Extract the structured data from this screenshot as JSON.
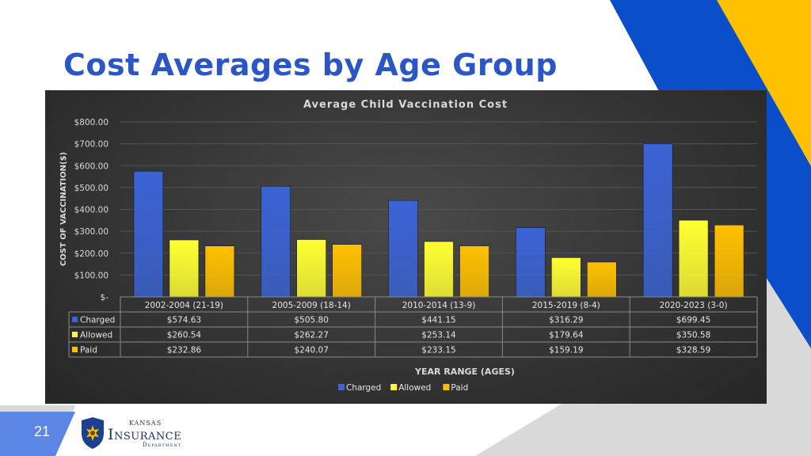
{
  "slide": {
    "title": "Cost Averages by Age Group",
    "number": "21"
  },
  "logo": {
    "line1": "Kansas",
    "line2": "Insurance",
    "line3": "Department"
  },
  "colors": {
    "title": "#2b56c6",
    "charged": "#3a63d4",
    "allowed": "#ffff33",
    "paid": "#ffc000",
    "accent_yellow": "#ffc000",
    "accent_blue": "#0a4fc9",
    "accent_gray": "#d9d9d9",
    "slide_number_bg": "#5b86e5"
  },
  "chart_data": {
    "type": "bar",
    "title": "Average Child Vaccination Cost",
    "xlabel": "YEAR RANGE (AGES)",
    "ylabel": "COST OF VACCINATION($)",
    "ylim": [
      0,
      800
    ],
    "yticks": [
      "$-",
      "$100.00",
      "$200.00",
      "$300.00",
      "$400.00",
      "$500.00",
      "$600.00",
      "$700.00",
      "$800.00"
    ],
    "grid": true,
    "legend_position": "bottom",
    "categories": [
      "2002-2004 (21-19)",
      "2005-2009 (18-14)",
      "2010-2014 (13-9)",
      "2015-2019 (8-4)",
      "2020-2023 (3-0)"
    ],
    "series": [
      {
        "name": "Charged",
        "values": [
          574.63,
          505.8,
          441.15,
          316.29,
          699.45
        ],
        "labels": [
          "$574.63",
          "$505.80",
          "$441.15",
          "$316.29",
          "$699.45"
        ],
        "color": "#3a63d4"
      },
      {
        "name": "Allowed",
        "values": [
          260.54,
          262.27,
          253.14,
          179.64,
          350.58
        ],
        "labels": [
          "$260.54",
          "$262.27",
          "$253.14",
          "$179.64",
          "$350.58"
        ],
        "color": "#ffff33"
      },
      {
        "name": "Paid",
        "values": [
          232.86,
          240.07,
          233.15,
          159.19,
          328.59
        ],
        "labels": [
          "$232.86",
          "$240.07",
          "$233.15",
          "$159.19",
          "$328.59"
        ],
        "color": "#ffc000"
      }
    ]
  }
}
